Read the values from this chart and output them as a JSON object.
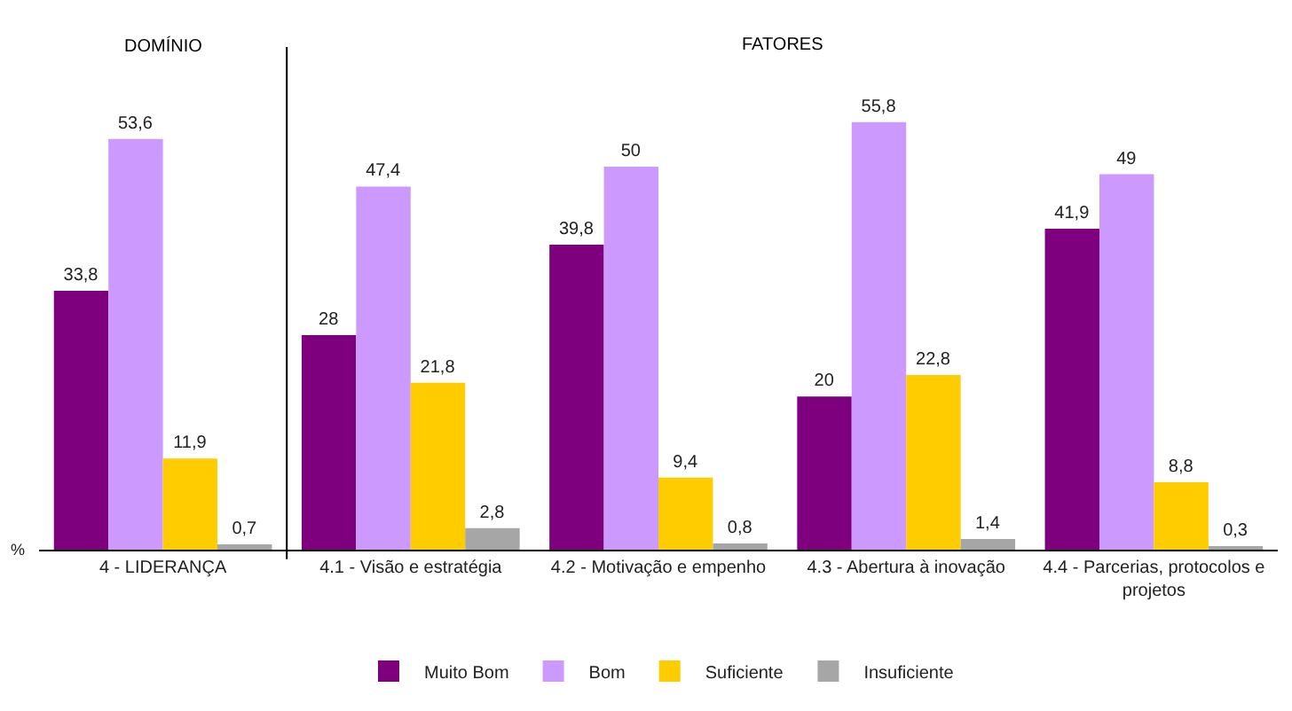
{
  "chart_data": {
    "type": "bar",
    "ylabel": "%",
    "annotations": [
      "DOMÍNIO",
      "FATORES"
    ],
    "categories": [
      "4 - LIDERANÇA",
      "4.1 - Visão e estratégia",
      "4.2 - Motivação e empenho",
      "4.3 - Abertura à inovação",
      "4.4 - Parcerias, protocolos e projetos"
    ],
    "series": [
      {
        "name": "Muito Bom",
        "color": "#7f007f",
        "values": [
          33.8,
          28,
          39.8,
          20,
          41.9
        ],
        "value_labels": [
          "33,8",
          "28",
          "39,8",
          "20",
          "41,9"
        ]
      },
      {
        "name": "Bom",
        "color": "#cc99ff",
        "values": [
          53.6,
          47.4,
          50,
          55.8,
          49
        ],
        "value_labels": [
          "53,6",
          "47,4",
          "50",
          "55,8",
          "49"
        ]
      },
      {
        "name": "Suficiente",
        "color": "#ffcc00",
        "values": [
          11.9,
          21.8,
          9.4,
          22.8,
          8.8
        ],
        "value_labels": [
          "11,9",
          "21,8",
          "9,4",
          "22,8",
          "8,8"
        ]
      },
      {
        "name": "Insuficiente",
        "color": "#a6a6a6",
        "values": [
          0.7,
          2.8,
          0.8,
          1.4,
          0.3
        ],
        "value_labels": [
          "0,7",
          "2,8",
          "0,8",
          "1,4",
          "0,3"
        ]
      }
    ],
    "legend": "bottom"
  }
}
